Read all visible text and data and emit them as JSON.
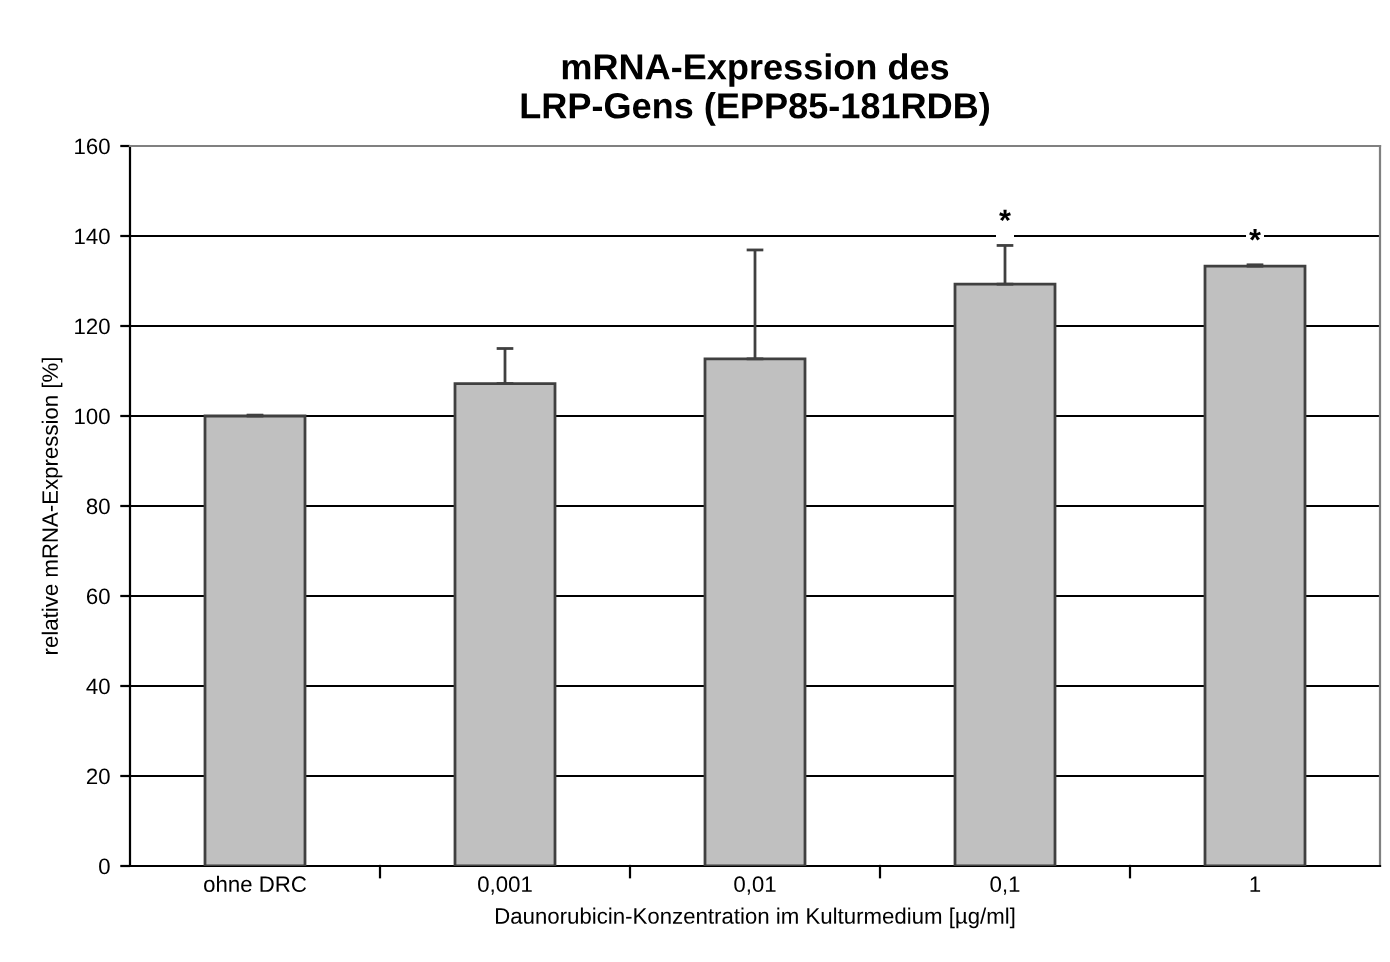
{
  "chart_data": {
    "type": "bar",
    "title": "mRNA-Expression des\nLRP-Gens (EPP85-181RDB)",
    "xlabel": "Daunorubicin-Konzentration im Kulturmedium [µg/ml]",
    "ylabel": "relative mRNA-Expression [%]",
    "categories": [
      "ohne DRC",
      "0,001",
      "0,01",
      "0,1",
      "1"
    ],
    "values": [
      100,
      107.2,
      112.7,
      129.3,
      133.3
    ],
    "errors": [
      [
        100,
        100.2
      ],
      [
        107.2,
        115
      ],
      [
        112.7,
        136.9
      ],
      [
        129.3,
        137.9
      ],
      [
        133.3,
        133.6
      ]
    ],
    "color": "#c0c0c0",
    "ylim": [
      0,
      160
    ],
    "yticks": [
      0,
      20,
      40,
      60,
      80,
      100,
      120,
      140,
      160
    ],
    "grid": "y",
    "annotations": [
      {
        "text": "*",
        "x": "0,1",
        "y": 137.9
      },
      {
        "text": "*",
        "x": "1",
        "y": 133.6
      }
    ]
  }
}
